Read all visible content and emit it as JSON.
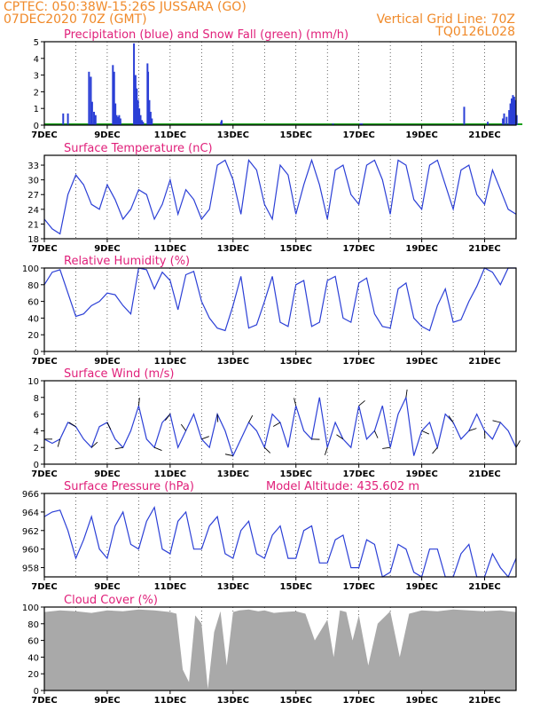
{
  "header": {
    "line1": "CPTEC:   050:38W-15:26S   JUSSARA (GO)",
    "line2": "07DEC2020 70Z (GMT)",
    "grid_note": "Vertical Grid Line: 70Z",
    "code": "TQ0126L028"
  },
  "colors": {
    "header": "#f08a2a",
    "title": "#e0207a",
    "line": "#2b3fd6",
    "snow": "#1aa01a",
    "cloud": "#a9a9a9"
  },
  "chart_data": [
    {
      "type": "bar",
      "title": "Precipitation (blue) and Snow Fall (green) (mm/h)",
      "x_labels": [
        "7DEC",
        "9DEC",
        "11DEC",
        "13DEC",
        "15DEC",
        "17DEC",
        "19DEC",
        "21DEC"
      ],
      "ylim": [
        0,
        5
      ],
      "yticks": [
        0,
        1,
        2,
        3,
        4,
        5
      ],
      "series": [
        {
          "name": "Precipitation (blue)",
          "x": [
            0.6,
            0.75,
            1.42,
            1.48,
            1.52,
            1.58,
            1.63,
            2.18,
            2.22,
            2.26,
            2.3,
            2.34,
            2.38,
            2.42,
            2.85,
            2.9,
            2.94,
            2.98,
            3.02,
            3.06,
            3.1,
            3.14,
            3.28,
            3.3,
            3.34,
            3.38,
            3.42,
            5.62,
            5.64,
            9.18,
            10.05,
            10.1,
            13.35,
            14.1,
            14.58,
            14.62,
            14.7,
            14.78,
            14.82,
            14.86,
            14.9,
            14.94,
            14.98,
            15.02
          ],
          "values": [
            0.7,
            0.7,
            3.2,
            2.9,
            1.4,
            0.8,
            0.6,
            3.6,
            3.2,
            1.3,
            0.6,
            0.5,
            0.6,
            0.4,
            4.9,
            3.0,
            2.2,
            1.5,
            1.0,
            0.6,
            0.3,
            0.2,
            3.7,
            3.2,
            1.5,
            0.8,
            0.4,
            0.2,
            0.3,
            0.1,
            0.1,
            0.1,
            1.1,
            0.2,
            0.4,
            0.7,
            0.5,
            0.9,
            1.3,
            1.6,
            1.8,
            1.7,
            1.5,
            0.6
          ]
        },
        {
          "name": "Snow Fall (green)",
          "x": [
            0,
            15.2
          ],
          "values": [
            0.05,
            0.05
          ]
        }
      ]
    },
    {
      "type": "line",
      "title": "Surface Temperature (nC)",
      "x_labels": [
        "7DEC",
        "9DEC",
        "11DEC",
        "13DEC",
        "15DEC",
        "17DEC",
        "19DEC",
        "21DEC"
      ],
      "ylim": [
        18,
        35
      ],
      "yticks": [
        18,
        21,
        24,
        27,
        30,
        33
      ],
      "x": [
        0,
        0.25,
        0.5,
        0.75,
        1.0,
        1.25,
        1.5,
        1.75,
        2.0,
        2.25,
        2.5,
        2.75,
        3.0,
        3.25,
        3.5,
        3.75,
        4.0,
        4.25,
        4.5,
        4.75,
        5.0,
        5.25,
        5.5,
        5.75,
        6.0,
        6.25,
        6.5,
        6.75,
        7.0,
        7.25,
        7.5,
        7.75,
        8.0,
        8.25,
        8.5,
        8.75,
        9.0,
        9.25,
        9.5,
        9.75,
        10.0,
        10.25,
        10.5,
        10.75,
        11.0,
        11.25,
        11.5,
        11.75,
        12.0,
        12.25,
        12.5,
        12.75,
        13.0,
        13.25,
        13.5,
        13.75,
        14.0,
        14.25,
        14.5,
        14.75,
        15.0
      ],
      "values": [
        22,
        20,
        19,
        27,
        31,
        29,
        25,
        24,
        29,
        26,
        22,
        24,
        28,
        27,
        22,
        25,
        30,
        23,
        28,
        26,
        22,
        24,
        33,
        34,
        30,
        23,
        34,
        32,
        25,
        22,
        33,
        31,
        23,
        29,
        34,
        29,
        22,
        32,
        33,
        27,
        25,
        33,
        34,
        30,
        23,
        34,
        33,
        26,
        24,
        33,
        34,
        29,
        24,
        32,
        33,
        27,
        25,
        32,
        28,
        24,
        23
      ]
    },
    {
      "type": "line",
      "title": "Relative Humidity (%)",
      "x_labels": [
        "7DEC",
        "9DEC",
        "11DEC",
        "13DEC",
        "15DEC",
        "17DEC",
        "19DEC",
        "21DEC"
      ],
      "ylim": [
        0,
        100
      ],
      "yticks": [
        0,
        20,
        40,
        60,
        80,
        100
      ],
      "x": [
        0,
        0.25,
        0.5,
        0.75,
        1.0,
        1.25,
        1.5,
        1.75,
        2.0,
        2.25,
        2.5,
        2.75,
        3.0,
        3.25,
        3.5,
        3.75,
        4.0,
        4.25,
        4.5,
        4.75,
        5.0,
        5.25,
        5.5,
        5.75,
        6.0,
        6.25,
        6.5,
        6.75,
        7.0,
        7.25,
        7.5,
        7.75,
        8.0,
        8.25,
        8.5,
        8.75,
        9.0,
        9.25,
        9.5,
        9.75,
        10.0,
        10.25,
        10.5,
        10.75,
        11.0,
        11.25,
        11.5,
        11.75,
        12.0,
        12.25,
        12.5,
        12.75,
        13.0,
        13.25,
        13.5,
        13.75,
        14.0,
        14.25,
        14.5,
        14.75,
        15.0
      ],
      "values": [
        80,
        95,
        98,
        70,
        42,
        45,
        55,
        60,
        70,
        68,
        55,
        45,
        100,
        98,
        75,
        95,
        85,
        50,
        92,
        96,
        60,
        40,
        28,
        25,
        55,
        90,
        28,
        32,
        60,
        90,
        35,
        30,
        80,
        85,
        30,
        35,
        85,
        90,
        40,
        35,
        82,
        88,
        45,
        30,
        28,
        75,
        82,
        40,
        30,
        25,
        55,
        75,
        35,
        38,
        60,
        78,
        100,
        95,
        80,
        100,
        100
      ]
    },
    {
      "type": "line",
      "title": "Surface Wind (m/s)",
      "x_labels": [
        "7DEC",
        "9DEC",
        "11DEC",
        "13DEC",
        "15DEC",
        "17DEC",
        "19DEC",
        "21DEC"
      ],
      "ylim": [
        0,
        10
      ],
      "yticks": [
        0,
        2,
        4,
        6,
        8,
        10
      ],
      "x": [
        0,
        0.25,
        0.5,
        0.75,
        1.0,
        1.25,
        1.5,
        1.75,
        2.0,
        2.25,
        2.5,
        2.75,
        3.0,
        3.25,
        3.5,
        3.75,
        4.0,
        4.25,
        4.5,
        4.75,
        5.0,
        5.25,
        5.5,
        5.75,
        6.0,
        6.25,
        6.5,
        6.75,
        7.0,
        7.25,
        7.5,
        7.75,
        8.0,
        8.25,
        8.5,
        8.75,
        9.0,
        9.25,
        9.5,
        9.75,
        10.0,
        10.25,
        10.5,
        10.75,
        11.0,
        11.25,
        11.5,
        11.75,
        12.0,
        12.25,
        12.5,
        12.75,
        13.0,
        13.25,
        13.5,
        13.75,
        14.0,
        14.25,
        14.5,
        14.75,
        15.0
      ],
      "values": [
        3,
        2.5,
        3,
        5,
        4.5,
        3,
        2,
        4.5,
        5,
        3,
        2,
        4,
        7,
        3,
        2,
        5,
        6,
        2,
        4,
        6,
        3,
        2,
        6,
        4,
        1,
        3,
        5,
        4,
        2,
        6,
        5,
        2,
        7,
        4,
        3,
        8,
        2,
        5,
        3,
        2,
        7,
        3,
        4,
        7,
        2,
        6,
        8,
        1,
        4,
        5,
        2,
        6,
        5,
        3,
        4,
        6,
        4,
        3,
        5,
        4,
        2
      ]
    },
    {
      "type": "line",
      "title": "Surface Pressure (hPa)",
      "annotation": "Model Altitude: 435.602  m",
      "x_labels": [
        "7DEC",
        "9DEC",
        "11DEC",
        "13DEC",
        "15DEC",
        "17DEC",
        "19DEC",
        "21DEC"
      ],
      "ylim": [
        957,
        966
      ],
      "yticks": [
        958,
        960,
        962,
        964,
        966
      ],
      "x": [
        0,
        0.25,
        0.5,
        0.75,
        1.0,
        1.25,
        1.5,
        1.75,
        2.0,
        2.25,
        2.5,
        2.75,
        3.0,
        3.25,
        3.5,
        3.75,
        4.0,
        4.25,
        4.5,
        4.75,
        5.0,
        5.25,
        5.5,
        5.75,
        6.0,
        6.25,
        6.5,
        6.75,
        7.0,
        7.25,
        7.5,
        7.75,
        8.0,
        8.25,
        8.5,
        8.75,
        9.0,
        9.25,
        9.5,
        9.75,
        10.0,
        10.25,
        10.5,
        10.75,
        11.0,
        11.25,
        11.5,
        11.75,
        12.0,
        12.25,
        12.5,
        12.75,
        13.0,
        13.25,
        13.5,
        13.75,
        14.0,
        14.25,
        14.5,
        14.75,
        15.0
      ],
      "values": [
        963.5,
        964,
        964.2,
        962,
        959,
        961,
        963.5,
        960,
        959,
        962.5,
        964,
        960.5,
        960,
        963,
        964.5,
        960,
        959.5,
        963,
        964,
        960,
        960,
        962.5,
        963.5,
        959.5,
        959,
        962,
        963,
        959.5,
        959,
        961.5,
        962.5,
        959,
        959,
        962,
        962.5,
        958.5,
        958.5,
        961,
        961.5,
        958,
        958,
        961,
        960.5,
        957,
        957.5,
        960.5,
        960,
        957.5,
        957,
        960,
        960,
        957,
        957,
        959.5,
        960.5,
        957,
        957,
        959.5,
        958,
        957,
        959
      ]
    },
    {
      "type": "area",
      "title": "Cloud Cover (%)",
      "x_labels": [
        "7DEC",
        "9DEC",
        "11DEC",
        "13DEC",
        "15DEC",
        "17DEC",
        "19DEC",
        "21DEC"
      ],
      "ylim": [
        0,
        100
      ],
      "yticks": [
        0,
        20,
        40,
        60,
        80,
        100
      ],
      "x": [
        0,
        0.5,
        1.0,
        1.5,
        2.0,
        2.5,
        3.0,
        3.5,
        4.0,
        4.2,
        4.4,
        4.6,
        4.8,
        5.0,
        5.2,
        5.4,
        5.6,
        5.8,
        6.0,
        6.2,
        6.5,
        6.8,
        7.0,
        7.3,
        7.6,
        8.0,
        8.3,
        8.6,
        9.0,
        9.2,
        9.4,
        9.6,
        9.8,
        10.0,
        10.3,
        10.6,
        11.0,
        11.3,
        11.6,
        12.0,
        12.5,
        13.0,
        13.5,
        14.0,
        14.5,
        15.0
      ],
      "values": [
        94,
        96,
        95,
        93,
        96,
        95,
        97,
        96,
        94,
        92,
        25,
        10,
        90,
        80,
        2,
        70,
        95,
        30,
        94,
        96,
        97,
        95,
        96,
        93,
        94,
        95,
        92,
        60,
        85,
        40,
        96,
        94,
        60,
        90,
        30,
        80,
        95,
        40,
        92,
        96,
        95,
        97,
        96,
        95,
        96,
        94
      ]
    }
  ]
}
